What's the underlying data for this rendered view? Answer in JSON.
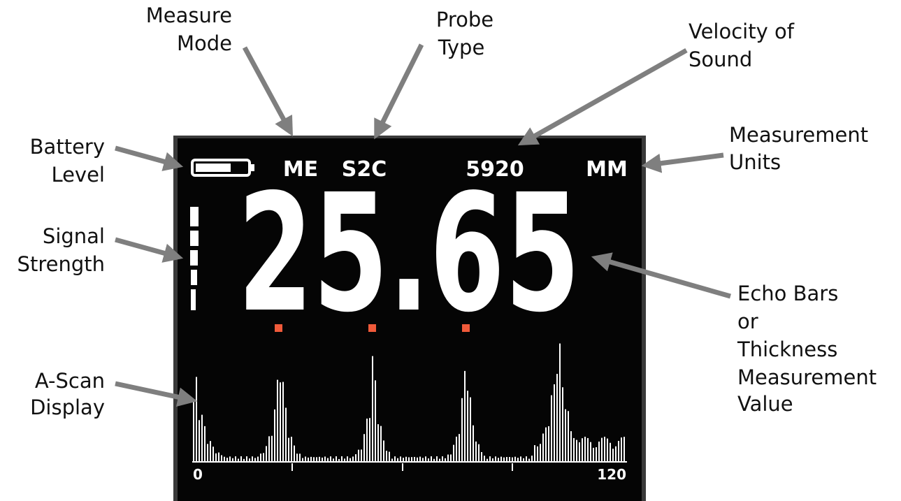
{
  "annotations": [
    {
      "lines": [
        "Measure",
        "Mode"
      ]
    },
    {
      "lines": [
        "Probe",
        "Type"
      ]
    },
    {
      "lines": [
        "Velocity of",
        "Sound"
      ]
    },
    {
      "lines": [
        "Battery",
        "Level"
      ]
    },
    {
      "lines": [
        "Measurement",
        "Units"
      ]
    },
    {
      "lines": [
        "Signal",
        "Strength"
      ]
    },
    {
      "lines": [
        "Echo Bars",
        "or",
        "Thickness",
        "Measurement",
        "Value"
      ]
    },
    {
      "lines": [
        "A-Scan",
        "Display"
      ]
    }
  ],
  "screen": {
    "measure_mode": "ME",
    "probe_type": "S2C",
    "velocity": "5920",
    "units": "MM",
    "thickness": "25.65",
    "scan_start": "0",
    "scan_end": "120"
  }
}
